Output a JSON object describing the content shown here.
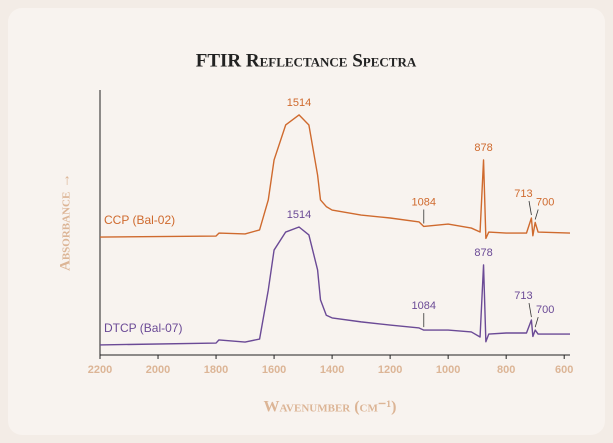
{
  "chart_data": {
    "type": "line",
    "title": "FTIR Reflectance Spectra",
    "xlabel": "Wavenumber (cm⁻¹)",
    "ylabel": "Absorbance →",
    "x": [
      2200,
      1800,
      1790,
      1700,
      1650,
      1620,
      1600,
      1560,
      1514,
      1480,
      1450,
      1440,
      1420,
      1400,
      1300,
      1200,
      1100,
      1084,
      1000,
      920,
      890,
      878,
      870,
      860,
      800,
      730,
      713,
      708,
      700,
      690,
      580
    ],
    "series": [
      {
        "name": "CCP (Bal-02)",
        "color": "#cf6a2e",
        "values": [
          4.45,
          4.49,
          4.6,
          4.57,
          4.72,
          5.85,
          7.36,
          8.68,
          9.06,
          8.68,
          6.79,
          5.85,
          5.6,
          5.47,
          5.28,
          5.17,
          5.02,
          4.85,
          4.94,
          4.79,
          4.64,
          7.36,
          4.4,
          4.64,
          4.6,
          4.6,
          5.17,
          4.5,
          5.0,
          4.64,
          4.6
        ],
        "annotations": [
          1514,
          1084,
          878,
          713,
          700
        ]
      },
      {
        "name": "DTCP (Bal-07)",
        "color": "#6b4a96",
        "values": [
          0.38,
          0.45,
          0.57,
          0.49,
          0.6,
          2.45,
          3.96,
          4.64,
          4.83,
          4.53,
          3.21,
          2.08,
          1.5,
          1.4,
          1.25,
          1.13,
          1.02,
          0.94,
          0.94,
          0.87,
          0.68,
          3.4,
          0.5,
          0.79,
          0.83,
          0.83,
          1.32,
          0.7,
          0.94,
          0.79,
          0.79
        ],
        "annotations": [
          1514,
          1084,
          878,
          713,
          700
        ]
      }
    ],
    "xlim": [
      2200,
      580
    ],
    "ylim": [
      0,
      10
    ],
    "xticks": [
      2200,
      2000,
      1800,
      1600,
      1400,
      1200,
      1000,
      800,
      600
    ],
    "grid": false
  }
}
